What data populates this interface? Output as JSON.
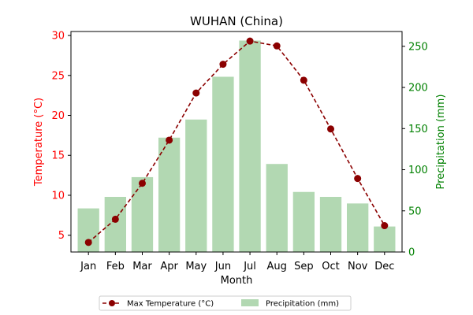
{
  "chart_data": {
    "type": "bar+line",
    "title": "WUHAN (China)",
    "xlabel": "Month",
    "categories": [
      "Jan",
      "Feb",
      "Mar",
      "Apr",
      "May",
      "Jun",
      "Jul",
      "Aug",
      "Sep",
      "Oct",
      "Nov",
      "Dec"
    ],
    "series": [
      {
        "name": "Max Temperature (°C)",
        "type": "line",
        "axis": "left",
        "color": "#8b0000",
        "values": [
          4.1,
          7.0,
          11.5,
          16.9,
          22.8,
          26.4,
          29.3,
          28.7,
          24.4,
          18.3,
          12.1,
          6.2
        ]
      },
      {
        "name": "Precipitation (mm)",
        "type": "bar",
        "axis": "right",
        "color": "#b2d8b2",
        "values": [
          53,
          67,
          91,
          139,
          161,
          213,
          257,
          107,
          73,
          67,
          59,
          31
        ]
      }
    ],
    "y_left": {
      "label": "Temperature (°C)",
      "color": "#ff0000",
      "ylim": [
        2.9,
        30.5
      ],
      "ticks": [
        "5",
        "10",
        "15",
        "20",
        "25",
        "30"
      ]
    },
    "y_right": {
      "label": "Precipitation (mm)",
      "color": "#008000",
      "ylim": [
        0,
        268
      ],
      "ticks": [
        "0",
        "50",
        "100",
        "150",
        "200",
        "250"
      ]
    },
    "grid": false,
    "legend_position": "bottom-center"
  }
}
